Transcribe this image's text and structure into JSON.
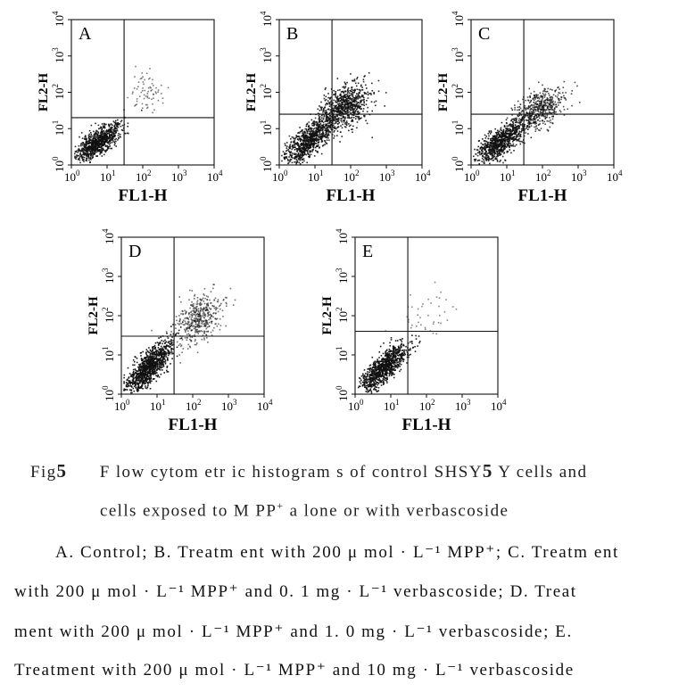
{
  "chart_data": [
    {
      "type": "scatter",
      "panel": "A",
      "xlabel": "FL1-H",
      "ylabel": "FL2-H",
      "xscale": "log",
      "yscale": "log",
      "xlim": [
        1,
        10000
      ],
      "ylim": [
        1,
        10000
      ],
      "ticks": [
        "10^0",
        "10^1",
        "10^2",
        "10^3",
        "10^4"
      ],
      "gate": {
        "x": 30,
        "y": 20
      }
    },
    {
      "type": "scatter",
      "panel": "B",
      "xlabel": "FL1-H",
      "ylabel": "FL2-H",
      "xscale": "log",
      "yscale": "log",
      "xlim": [
        1,
        10000
      ],
      "ylim": [
        1,
        10000
      ],
      "ticks": [
        "10^0",
        "10^1",
        "10^2",
        "10^3",
        "10^4"
      ],
      "gate": {
        "x": 30,
        "y": 25
      }
    },
    {
      "type": "scatter",
      "panel": "C",
      "xlabel": "FL1-H",
      "ylabel": "FL2-H",
      "xscale": "log",
      "yscale": "log",
      "xlim": [
        1,
        10000
      ],
      "ylim": [
        1,
        10000
      ],
      "ticks": [
        "10^0",
        "10^1",
        "10^2",
        "10^3",
        "10^4"
      ],
      "gate": {
        "x": 30,
        "y": 25
      }
    },
    {
      "type": "scatter",
      "panel": "D",
      "xlabel": "FL1-H",
      "ylabel": "FL2-H",
      "xscale": "log",
      "yscale": "log",
      "xlim": [
        1,
        10000
      ],
      "ylim": [
        1,
        10000
      ],
      "ticks": [
        "10^0",
        "10^1",
        "10^2",
        "10^3",
        "10^4"
      ],
      "gate": {
        "x": 30,
        "y": 30
      }
    },
    {
      "type": "scatter",
      "panel": "E",
      "xlabel": "FL1-H",
      "ylabel": "FL2-H",
      "xscale": "log",
      "yscale": "log",
      "xlim": [
        1,
        10000
      ],
      "ylim": [
        1,
        10000
      ],
      "ticks": [
        "10^0",
        "10^1",
        "10^2",
        "10^3",
        "10^4"
      ],
      "gate": {
        "x": 30,
        "y": 40
      }
    }
  ],
  "caption": {
    "fig_label": "Fig",
    "fig_number": "5",
    "title_line1_a": "F low cytom etr ic histogram s of control SHSY",
    "title_line1_num": "5",
    "title_line1_b": " Y  cells and",
    "title_line2": "cells exposed to M PP",
    "title_line2_sup": "+",
    "title_line2_b": "  a lone or with verbascoside"
  },
  "legend": {
    "line1": "A. Control; B. Treatm ent with 200 μ mol · L⁻¹ MPP⁺; C. Treatm ent",
    "line2": "with 200 μ mol · L⁻¹ MPP⁺  and 0. 1  mg · L⁻¹  verbascoside; D. Treat",
    "line3": "ment with 200 μ mol · L⁻¹ MPP⁺  and 1. 0  mg · L⁻¹  verbascoside; E.",
    "line4": "Treatment with 200 μ mol · L⁻¹ MPP⁺  and 10  mg · L⁻¹  verbascoside"
  }
}
